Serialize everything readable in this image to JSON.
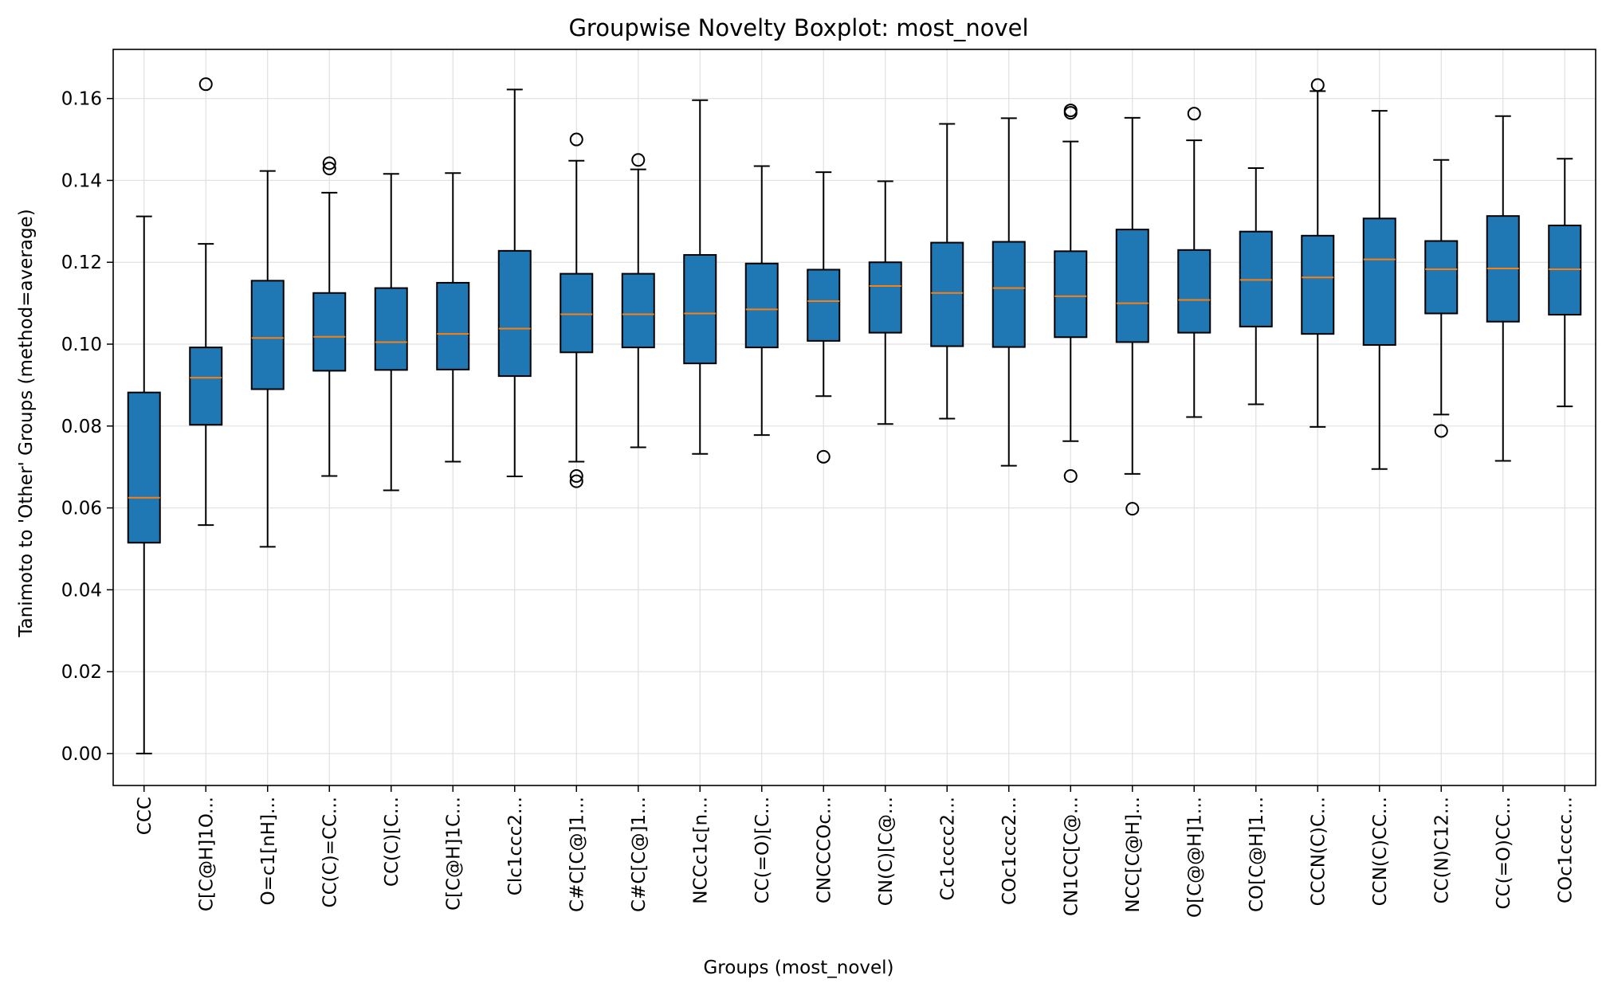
{
  "chart_data": {
    "type": "boxplot",
    "title": "Groupwise Novelty Boxplot: most_novel",
    "xlabel": "Groups (most_novel)",
    "ylabel": "Tanimoto to 'Other' Groups (method=average)",
    "ylim": [
      -0.0078,
      0.172
    ],
    "yticks": [
      "0.00",
      "0.02",
      "0.04",
      "0.06",
      "0.08",
      "0.10",
      "0.12",
      "0.14",
      "0.16"
    ],
    "grid": true,
    "colors": {
      "box_fill": "#1f77b4",
      "median": "#ff7f0e",
      "edge": "#000000",
      "grid": "#e0e0e0"
    },
    "categories": [
      "CCC",
      "C[C@H]1O...",
      "O=c1[nH]...",
      "CC(C)=CC...",
      "CC(C)[C...",
      "C[C@H]1C...",
      "Clc1ccc2...",
      "C#C[C@]1...",
      "C#C[C@]1...",
      "NCCc1c[n...",
      "CC(=O)[C...",
      "CNCCCOc...",
      "CN(C)[C@...",
      "Cc1cccc2...",
      "COc1ccc2...",
      "CN1CC[C@...",
      "NCC[C@H]...",
      "O[C@@H]1...",
      "CO[C@H]1...",
      "CCCN(C)C...",
      "CCN(C)CC...",
      "CC(N)C12...",
      "CC(=O)CC...",
      "COc1cccc..."
    ],
    "boxes": [
      {
        "whislo": 0.0,
        "q1": 0.0515,
        "med": 0.0625,
        "q3": 0.0882,
        "whishi": 0.1312,
        "fliers": []
      },
      {
        "whislo": 0.0558,
        "q1": 0.0803,
        "med": 0.0918,
        "q3": 0.0992,
        "whishi": 0.1245,
        "fliers": [
          0.1635
        ]
      },
      {
        "whislo": 0.0505,
        "q1": 0.089,
        "med": 0.1015,
        "q3": 0.1155,
        "whishi": 0.1423,
        "fliers": []
      },
      {
        "whislo": 0.0678,
        "q1": 0.0935,
        "med": 0.1018,
        "q3": 0.1125,
        "whishi": 0.137,
        "fliers": [
          0.1442,
          0.1429
        ]
      },
      {
        "whislo": 0.0643,
        "q1": 0.0937,
        "med": 0.1005,
        "q3": 0.1137,
        "whishi": 0.1416,
        "fliers": []
      },
      {
        "whislo": 0.0713,
        "q1": 0.0938,
        "med": 0.1025,
        "q3": 0.115,
        "whishi": 0.1418,
        "fliers": []
      },
      {
        "whislo": 0.0677,
        "q1": 0.0922,
        "med": 0.1038,
        "q3": 0.1228,
        "whishi": 0.1622,
        "fliers": []
      },
      {
        "whislo": 0.0713,
        "q1": 0.098,
        "med": 0.1073,
        "q3": 0.1172,
        "whishi": 0.1448,
        "fliers": [
          0.15,
          0.0678,
          0.0665
        ]
      },
      {
        "whislo": 0.0748,
        "q1": 0.0992,
        "med": 0.1073,
        "q3": 0.1172,
        "whishi": 0.1427,
        "fliers": [
          0.145
        ]
      },
      {
        "whislo": 0.0732,
        "q1": 0.0953,
        "med": 0.1075,
        "q3": 0.1218,
        "whishi": 0.1596,
        "fliers": []
      },
      {
        "whislo": 0.0778,
        "q1": 0.0992,
        "med": 0.1085,
        "q3": 0.1197,
        "whishi": 0.1435,
        "fliers": []
      },
      {
        "whislo": 0.0873,
        "q1": 0.1008,
        "med": 0.1105,
        "q3": 0.1182,
        "whishi": 0.142,
        "fliers": [
          0.0725
        ]
      },
      {
        "whislo": 0.0805,
        "q1": 0.1028,
        "med": 0.1142,
        "q3": 0.12,
        "whishi": 0.1398,
        "fliers": []
      },
      {
        "whislo": 0.0818,
        "q1": 0.0995,
        "med": 0.1125,
        "q3": 0.1248,
        "whishi": 0.1538,
        "fliers": []
      },
      {
        "whislo": 0.0703,
        "q1": 0.0993,
        "med": 0.1137,
        "q3": 0.125,
        "whishi": 0.1552,
        "fliers": []
      },
      {
        "whislo": 0.0763,
        "q1": 0.1017,
        "med": 0.1117,
        "q3": 0.1227,
        "whishi": 0.1495,
        "fliers": [
          0.1571,
          0.1565,
          0.0678
        ]
      },
      {
        "whislo": 0.0683,
        "q1": 0.1005,
        "med": 0.11,
        "q3": 0.128,
        "whishi": 0.1553,
        "fliers": [
          0.0598
        ]
      },
      {
        "whislo": 0.0822,
        "q1": 0.1028,
        "med": 0.1108,
        "q3": 0.123,
        "whishi": 0.1498,
        "fliers": [
          0.1563
        ]
      },
      {
        "whislo": 0.0853,
        "q1": 0.1043,
        "med": 0.1157,
        "q3": 0.1275,
        "whishi": 0.143,
        "fliers": []
      },
      {
        "whislo": 0.0798,
        "q1": 0.1025,
        "med": 0.1163,
        "q3": 0.1265,
        "whishi": 0.1618,
        "fliers": [
          0.1633
        ]
      },
      {
        "whislo": 0.0695,
        "q1": 0.0998,
        "med": 0.1207,
        "q3": 0.1307,
        "whishi": 0.157,
        "fliers": []
      },
      {
        "whislo": 0.0828,
        "q1": 0.1075,
        "med": 0.1183,
        "q3": 0.1252,
        "whishi": 0.145,
        "fliers": [
          0.0788
        ]
      },
      {
        "whislo": 0.0715,
        "q1": 0.1055,
        "med": 0.1185,
        "q3": 0.1313,
        "whishi": 0.1557,
        "fliers": []
      },
      {
        "whislo": 0.0848,
        "q1": 0.1072,
        "med": 0.1183,
        "q3": 0.129,
        "whishi": 0.1453,
        "fliers": []
      }
    ]
  }
}
